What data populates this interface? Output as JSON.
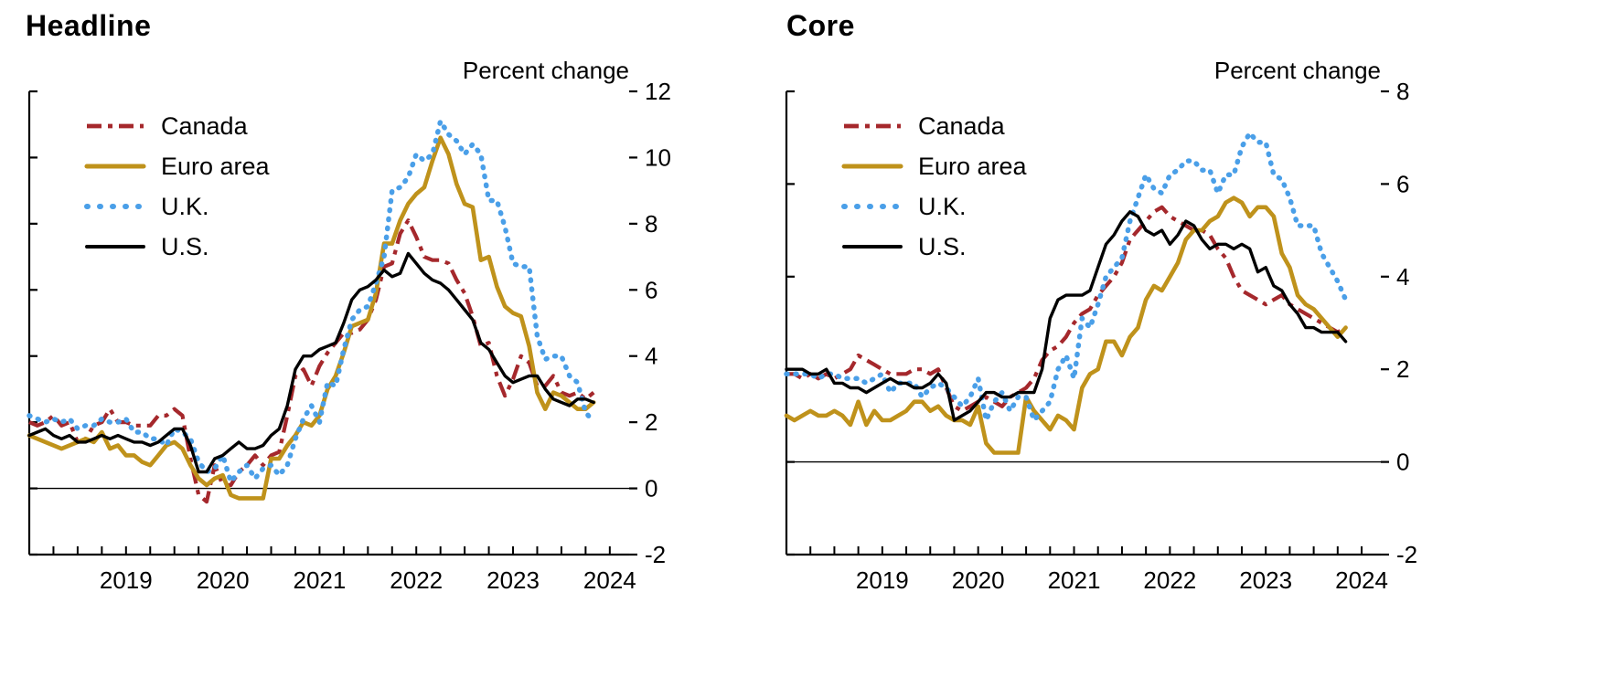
{
  "figure": {
    "panels": [
      "Headline",
      "Core"
    ]
  },
  "chart_data": [
    {
      "type": "line",
      "title": "Headline",
      "unit_label": "Percent change",
      "x_label_years": [
        "2019",
        "2020",
        "2021",
        "2022",
        "2023",
        "2024"
      ],
      "x_monthly_start": "2018-07",
      "x_monthly_end": "2024-05",
      "x_range": [
        2018.5,
        2024.7
      ],
      "ylim": [
        -2,
        12
      ],
      "y_ticks": [
        -2,
        0,
        2,
        4,
        6,
        8,
        10,
        12
      ],
      "grid": "off",
      "zero_line": true,
      "legend_position": "top-left-inside",
      "series": [
        {
          "name": "Canada",
          "color": "#a5282c",
          "line_style": "dash-dot",
          "values": [
            2.0,
            1.9,
            2.0,
            2.2,
            1.9,
            2.0,
            1.4,
            1.5,
            1.9,
            2.0,
            2.4,
            2.0,
            2.0,
            1.9,
            1.9,
            1.9,
            2.2,
            2.2,
            2.4,
            2.2,
            0.9,
            -0.2,
            -0.4,
            0.7,
            0.1,
            0.1,
            0.5,
            0.7,
            1.0,
            0.7,
            1.0,
            1.1,
            2.2,
            3.4,
            3.6,
            3.1,
            3.7,
            4.1,
            4.4,
            4.7,
            4.7,
            4.8,
            5.1,
            5.7,
            6.7,
            6.8,
            7.7,
            8.1,
            7.6,
            7.0,
            6.9,
            6.9,
            6.8,
            6.3,
            5.9,
            5.2,
            4.3,
            4.4,
            3.4,
            2.8,
            3.3,
            4.0,
            3.8,
            3.1,
            3.1,
            3.4,
            2.9,
            2.8,
            2.9,
            2.7,
            2.9
          ]
        },
        {
          "name": "Euro area",
          "color": "#bf921b",
          "line_style": "solid",
          "values": [
            1.6,
            1.5,
            1.4,
            1.3,
            1.2,
            1.3,
            1.4,
            1.5,
            1.4,
            1.7,
            1.2,
            1.3,
            1.0,
            1.0,
            0.8,
            0.7,
            1.0,
            1.3,
            1.4,
            1.2,
            0.7,
            0.3,
            0.1,
            0.3,
            0.4,
            -0.2,
            -0.3,
            -0.3,
            -0.3,
            -0.3,
            0.9,
            0.9,
            1.3,
            1.6,
            2.0,
            1.9,
            2.2,
            3.0,
            3.4,
            4.1,
            4.9,
            5.0,
            5.1,
            5.9,
            7.4,
            7.4,
            8.1,
            8.6,
            8.9,
            9.1,
            9.9,
            10.6,
            10.1,
            9.2,
            8.6,
            8.5,
            6.9,
            7.0,
            6.1,
            5.5,
            5.3,
            5.2,
            4.3,
            2.9,
            2.4,
            2.9,
            2.8,
            2.6,
            2.4,
            2.4,
            2.6
          ]
        },
        {
          "name": "U.K.",
          "color": "#4a9fe8",
          "line_style": "dotted",
          "values": [
            2.2,
            2.1,
            2.0,
            2.1,
            2.0,
            2.1,
            1.8,
            1.9,
            1.9,
            2.1,
            2.0,
            2.0,
            2.1,
            1.7,
            1.7,
            1.5,
            1.5,
            1.3,
            1.8,
            1.7,
            1.5,
            0.8,
            0.5,
            0.6,
            1.0,
            0.2,
            0.5,
            0.7,
            0.3,
            0.6,
            0.7,
            0.4,
            0.7,
            1.5,
            2.1,
            2.5,
            2.0,
            3.2,
            3.1,
            4.2,
            5.1,
            5.4,
            5.5,
            6.2,
            7.0,
            9.0,
            9.1,
            9.4,
            10.1,
            9.9,
            10.1,
            11.1,
            10.7,
            10.5,
            10.1,
            10.4,
            10.1,
            8.7,
            8.7,
            7.9,
            6.8,
            6.7,
            6.7,
            4.6,
            3.9,
            4.0,
            4.0,
            3.4,
            3.2,
            2.3,
            2.0
          ]
        },
        {
          "name": "U.S.",
          "color": "#000000",
          "line_style": "solid",
          "values": [
            1.6,
            1.7,
            1.8,
            1.6,
            1.5,
            1.6,
            1.4,
            1.4,
            1.5,
            1.6,
            1.5,
            1.6,
            1.5,
            1.4,
            1.4,
            1.3,
            1.4,
            1.6,
            1.8,
            1.8,
            1.3,
            0.5,
            0.5,
            0.9,
            1.0,
            1.2,
            1.4,
            1.2,
            1.2,
            1.3,
            1.6,
            1.8,
            2.5,
            3.6,
            4.0,
            4.0,
            4.2,
            4.3,
            4.4,
            5.0,
            5.7,
            6.0,
            6.1,
            6.3,
            6.6,
            6.4,
            6.5,
            7.1,
            6.8,
            6.5,
            6.3,
            6.2,
            6.0,
            5.7,
            5.4,
            5.1,
            4.4,
            4.2,
            3.8,
            3.4,
            3.2,
            3.3,
            3.4,
            3.4,
            3.0,
            2.7,
            2.6,
            2.5,
            2.7,
            2.7,
            2.6
          ]
        }
      ]
    },
    {
      "type": "line",
      "title": "Core",
      "unit_label": "Percent change",
      "x_label_years": [
        "2019",
        "2020",
        "2021",
        "2022",
        "2023",
        "2024"
      ],
      "x_monthly_start": "2018-07",
      "x_monthly_end": "2024-05",
      "x_range": [
        2018.5,
        2024.7
      ],
      "ylim": [
        -2,
        8
      ],
      "y_ticks": [
        -2,
        0,
        2,
        4,
        6,
        8
      ],
      "grid": "off",
      "zero_line": true,
      "legend_position": "top-left-inside",
      "series": [
        {
          "name": "Canada",
          "color": "#a5282c",
          "line_style": "dash-dot",
          "values": [
            1.9,
            1.9,
            1.8,
            1.9,
            1.8,
            1.9,
            1.8,
            1.9,
            2.0,
            2.3,
            2.2,
            2.1,
            2.0,
            1.9,
            1.9,
            1.9,
            2.0,
            2.0,
            1.9,
            2.0,
            1.6,
            1.2,
            1.1,
            1.2,
            1.3,
            1.4,
            1.3,
            1.2,
            1.4,
            1.5,
            1.6,
            1.8,
            2.2,
            2.4,
            2.5,
            2.7,
            3.0,
            3.2,
            3.3,
            3.6,
            3.8,
            4.0,
            4.3,
            4.8,
            5.0,
            5.2,
            5.4,
            5.5,
            5.3,
            5.2,
            5.1,
            5.0,
            5.0,
            4.9,
            4.6,
            4.4,
            4.0,
            3.7,
            3.6,
            3.5,
            3.4,
            3.5,
            3.6,
            3.4,
            3.3,
            3.2,
            3.1,
            3.0,
            2.9,
            2.8,
            2.9
          ]
        },
        {
          "name": "Euro area",
          "color": "#bf921b",
          "line_style": "solid",
          "values": [
            1.0,
            0.9,
            1.0,
            1.1,
            1.0,
            1.0,
            1.1,
            1.0,
            0.8,
            1.3,
            0.8,
            1.1,
            0.9,
            0.9,
            1.0,
            1.1,
            1.3,
            1.3,
            1.1,
            1.2,
            1.0,
            0.9,
            0.9,
            0.8,
            1.2,
            0.4,
            0.2,
            0.2,
            0.2,
            0.2,
            1.4,
            1.1,
            0.9,
            0.7,
            1.0,
            0.9,
            0.7,
            1.6,
            1.9,
            2.0,
            2.6,
            2.6,
            2.3,
            2.7,
            2.9,
            3.5,
            3.8,
            3.7,
            4.0,
            4.3,
            4.8,
            5.0,
            5.0,
            5.2,
            5.3,
            5.6,
            5.7,
            5.6,
            5.3,
            5.5,
            5.5,
            5.3,
            4.5,
            4.2,
            3.6,
            3.4,
            3.3,
            3.1,
            2.9,
            2.7,
            2.9
          ]
        },
        {
          "name": "U.K.",
          "color": "#4a9fe8",
          "line_style": "dotted",
          "values": [
            1.9,
            1.9,
            1.9,
            1.9,
            1.8,
            1.9,
            1.9,
            1.8,
            1.8,
            1.8,
            1.7,
            1.8,
            1.9,
            1.5,
            1.7,
            1.7,
            1.7,
            1.4,
            1.6,
            1.7,
            1.6,
            1.4,
            1.2,
            1.4,
            1.8,
            0.9,
            1.3,
            1.5,
            1.1,
            1.4,
            1.4,
            0.9,
            1.1,
            1.3,
            2.0,
            2.3,
            1.8,
            3.1,
            2.9,
            3.4,
            4.0,
            4.2,
            4.4,
            5.2,
            5.7,
            6.2,
            5.9,
            5.8,
            6.2,
            6.3,
            6.5,
            6.5,
            6.3,
            6.3,
            5.8,
            6.2,
            6.2,
            6.8,
            7.1,
            6.9,
            6.9,
            6.2,
            6.1,
            5.7,
            5.1,
            5.1,
            5.1,
            4.5,
            4.2,
            3.9,
            3.5
          ]
        },
        {
          "name": "U.S.",
          "color": "#000000",
          "line_style": "solid",
          "values": [
            2.0,
            2.0,
            2.0,
            1.9,
            1.9,
            2.0,
            1.7,
            1.7,
            1.6,
            1.6,
            1.5,
            1.6,
            1.7,
            1.8,
            1.7,
            1.7,
            1.6,
            1.6,
            1.7,
            1.9,
            1.7,
            0.9,
            1.0,
            1.1,
            1.3,
            1.5,
            1.5,
            1.4,
            1.4,
            1.5,
            1.5,
            1.5,
            2.0,
            3.1,
            3.5,
            3.6,
            3.6,
            3.6,
            3.7,
            4.2,
            4.7,
            4.9,
            5.2,
            5.4,
            5.3,
            5.0,
            4.9,
            5.0,
            4.7,
            4.9,
            5.2,
            5.1,
            4.8,
            4.6,
            4.7,
            4.7,
            4.6,
            4.7,
            4.6,
            4.1,
            4.2,
            3.8,
            3.7,
            3.4,
            3.2,
            2.9,
            2.9,
            2.8,
            2.8,
            2.8,
            2.6
          ]
        }
      ]
    }
  ]
}
